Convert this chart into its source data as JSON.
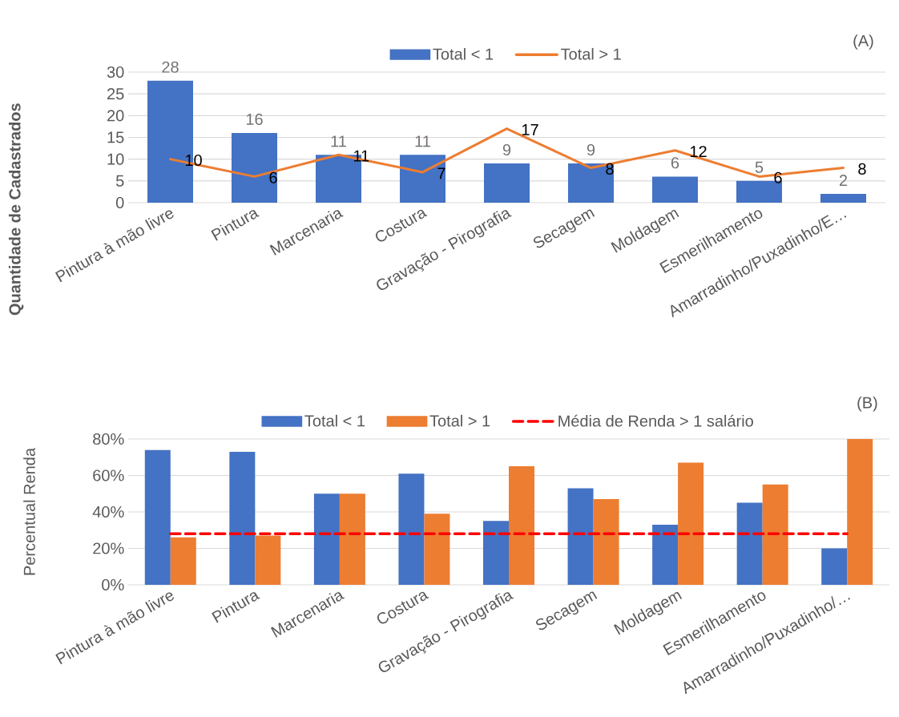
{
  "chart_data": [
    {
      "type": "bar",
      "categories": [
        "Pintura à mão livre",
        "Pintura",
        "Marcenaria",
        "Costura",
        "Gravação - Pirografia",
        "Secagem",
        "Moldagem",
        "Esmerilhamento",
        "Amarradinho/Puxadinho/E…"
      ],
      "series": [
        {
          "name": "Total < 1",
          "color": "#4472c4",
          "values": [
            28,
            16,
            11,
            11,
            9,
            9,
            6,
            5,
            2
          ]
        },
        {
          "name": "Total > 1",
          "type": "line",
          "color": "#ed7d31",
          "values": [
            10,
            6,
            11,
            7,
            17,
            8,
            12,
            6,
            8
          ]
        }
      ],
      "ylabel": "Quantidade de Cadastrados",
      "annotations": [
        "(A)"
      ],
      "ylim": [
        0,
        30
      ],
      "yticks": [
        0,
        5,
        10,
        15,
        20,
        25,
        30
      ],
      "grid": "y",
      "legend": "top",
      "data_labels": true
    },
    {
      "type": "bar",
      "categories": [
        "Pintura à mão livre",
        "Pintura",
        "Marcenaria",
        "Costura",
        "Gravação - Pirografia",
        "Secagem",
        "Moldagem",
        "Esmerilhamento",
        "Amarradinho/Puxadinho/…"
      ],
      "series": [
        {
          "name": "Total < 1",
          "color": "#4472c4",
          "values": [
            74,
            73,
            50,
            61,
            35,
            53,
            33,
            45,
            20
          ]
        },
        {
          "name": "Total > 1",
          "color": "#ed7d31",
          "values": [
            26,
            27,
            50,
            39,
            65,
            47,
            67,
            55,
            80
          ]
        },
        {
          "name": "Média de Renda > 1 salário",
          "type": "line",
          "line_style": "dashed",
          "color": "#ff0000",
          "values": [
            28,
            28,
            28,
            28,
            28,
            28,
            28,
            28,
            28
          ]
        }
      ],
      "ylabel": "Percentual Renda",
      "annotations": [
        "(B)"
      ],
      "ylim": [
        0,
        80
      ],
      "yticks": [
        {
          "value": 0,
          "label": "0%"
        },
        {
          "value": 20,
          "label": "20%"
        },
        {
          "value": 40,
          "label": "40%"
        },
        {
          "value": 60,
          "label": "60%"
        },
        {
          "value": 80,
          "label": "80%"
        }
      ],
      "grid": "y",
      "legend": "top"
    }
  ]
}
